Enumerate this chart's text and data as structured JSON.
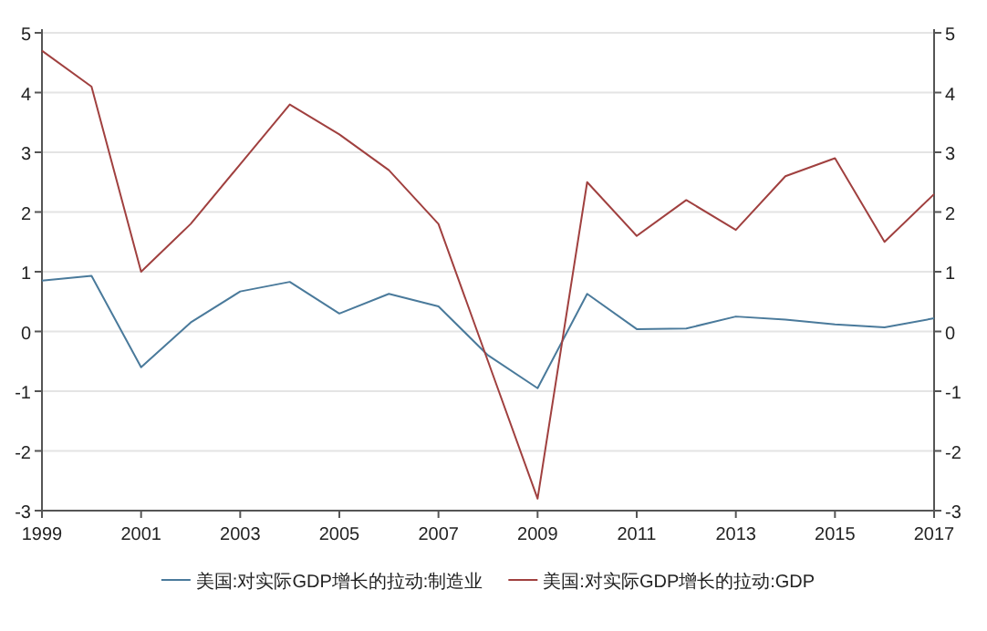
{
  "chart_data": {
    "type": "line",
    "x": [
      1999,
      2000,
      2001,
      2002,
      2003,
      2004,
      2005,
      2006,
      2007,
      2008,
      2009,
      2010,
      2011,
      2012,
      2013,
      2014,
      2015,
      2016,
      2017
    ],
    "series": [
      {
        "name": "美国:对实际GDP增长的拉动:制造业",
        "color": "#4a7a9b",
        "values": [
          0.85,
          0.93,
          -0.6,
          0.15,
          0.67,
          0.83,
          0.3,
          0.63,
          0.42,
          -0.4,
          -0.95,
          0.63,
          0.04,
          0.05,
          0.25,
          0.2,
          0.12,
          0.07,
          0.22
        ]
      },
      {
        "name": "美国:对实际GDP增长的拉动:GDP",
        "color": "#a0403f",
        "values": [
          4.7,
          4.1,
          1.0,
          1.8,
          2.8,
          3.8,
          3.3,
          2.7,
          1.8,
          -0.5,
          -2.8,
          2.5,
          1.6,
          2.2,
          1.7,
          2.6,
          2.9,
          1.5,
          2.3
        ]
      }
    ],
    "xlim": [
      1999,
      2017
    ],
    "xticks": [
      1999,
      2001,
      2003,
      2005,
      2007,
      2009,
      2011,
      2013,
      2015,
      2017
    ],
    "ylim": [
      -3,
      5
    ],
    "yticks": [
      -3,
      -2,
      -1,
      0,
      1,
      2,
      3,
      4,
      5
    ],
    "y2lim": [
      -3,
      5
    ],
    "y2ticks": [
      -3,
      -2,
      -1,
      0,
      1,
      2,
      3,
      4,
      5
    ],
    "grid": "y",
    "legend": "bottom",
    "marker": "none",
    "line_style": "solid"
  }
}
